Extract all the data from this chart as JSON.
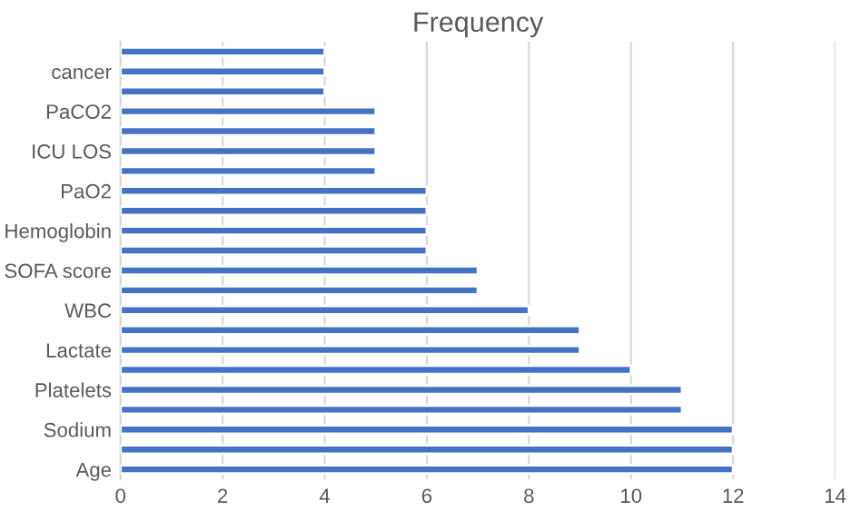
{
  "chart_data": {
    "type": "bar",
    "orientation": "horizontal",
    "title": "Frequency",
    "categories": [
      null,
      "cancer",
      null,
      "PaCO2",
      null,
      "ICU LOS",
      null,
      "PaO2",
      null,
      "Hemoglobin",
      null,
      "SOFA score",
      null,
      "WBC",
      null,
      "Lactate",
      null,
      "Platelets",
      null,
      "Sodium",
      null,
      "Age"
    ],
    "values": [
      4,
      4,
      4,
      5,
      5,
      5,
      5,
      6,
      6,
      6,
      6,
      7,
      7,
      8,
      9,
      9,
      10,
      11,
      11,
      12,
      12,
      12
    ],
    "color": "#4472c4",
    "xlim": [
      0,
      14
    ],
    "xticks": [
      0,
      2,
      4,
      6,
      8,
      10,
      12,
      14
    ],
    "grid": "x"
  }
}
